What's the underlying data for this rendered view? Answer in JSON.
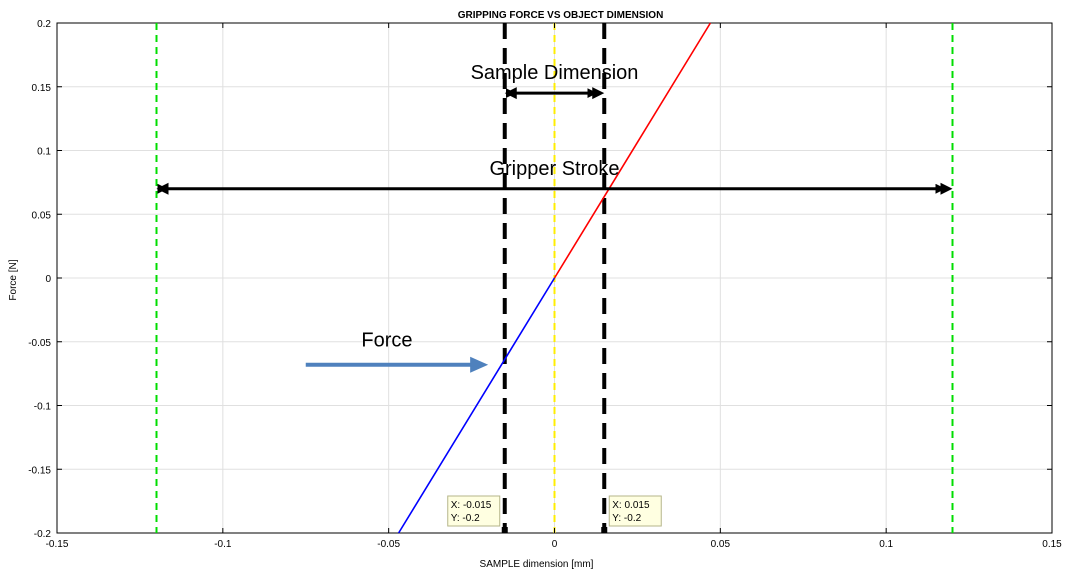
{
  "chart_data": {
    "type": "line",
    "title": "GRIPPING FORCE VS OBJECT DIMENSION",
    "xlabel": "SAMPLE dimension [mm]",
    "ylabel": "Force [N]",
    "xlim": [
      -0.15,
      0.15
    ],
    "ylim": [
      -0.2,
      0.2
    ],
    "xticks": [
      -0.15,
      -0.1,
      -0.05,
      0,
      0.05,
      0.1,
      0.15
    ],
    "xtick_labels": [
      "-0.15",
      "-0.1",
      "-0.05",
      "0",
      "0.05",
      "0.1",
      "0.15"
    ],
    "yticks": [
      -0.2,
      -0.15,
      -0.1,
      -0.05,
      0,
      0.05,
      0.1,
      0.15,
      0.2
    ],
    "ytick_labels": [
      "-0.2",
      "-0.15",
      "-0.1",
      "-0.05",
      "0",
      "0.05",
      "0.1",
      "0.15",
      "0.2"
    ],
    "grid": true,
    "series": [
      {
        "color": "#0000ff",
        "x": [
          -0.047,
          0
        ],
        "y": [
          -0.2,
          0
        ]
      },
      {
        "color": "#ff0000",
        "x": [
          0,
          0.047
        ],
        "y": [
          0,
          0.2
        ]
      }
    ],
    "vertical_lines": [
      {
        "x": -0.12,
        "color": "#00dd00",
        "style": "dashed"
      },
      {
        "x": 0.12,
        "color": "#00dd00",
        "style": "dashed"
      },
      {
        "x": 0,
        "color": "#ffee00",
        "style": "dashed"
      },
      {
        "x": -0.015,
        "color": "#000000",
        "style": "thick-dashed"
      },
      {
        "x": 0.015,
        "color": "#000000",
        "style": "thick-dashed"
      }
    ],
    "annotations": [
      {
        "text": "Sample Dimension",
        "arrow": "double",
        "x_from": -0.015,
        "x_to": 0.015,
        "y": 0.145
      },
      {
        "text": "Gripper Stroke",
        "arrow": "double",
        "x_from": -0.12,
        "x_to": 0.12,
        "y": 0.07
      },
      {
        "text": "Force",
        "arrow": "single",
        "x_from": -0.075,
        "x_to": -0.02,
        "y": -0.068
      }
    ],
    "datatips": [
      {
        "x_label": "X: -0.015",
        "y_label": "Y: -0.2",
        "x": -0.015,
        "y": -0.2
      },
      {
        "x_label": "X: 0.015",
        "y_label": "Y: -0.2",
        "x": 0.015,
        "y": -0.2
      }
    ]
  }
}
